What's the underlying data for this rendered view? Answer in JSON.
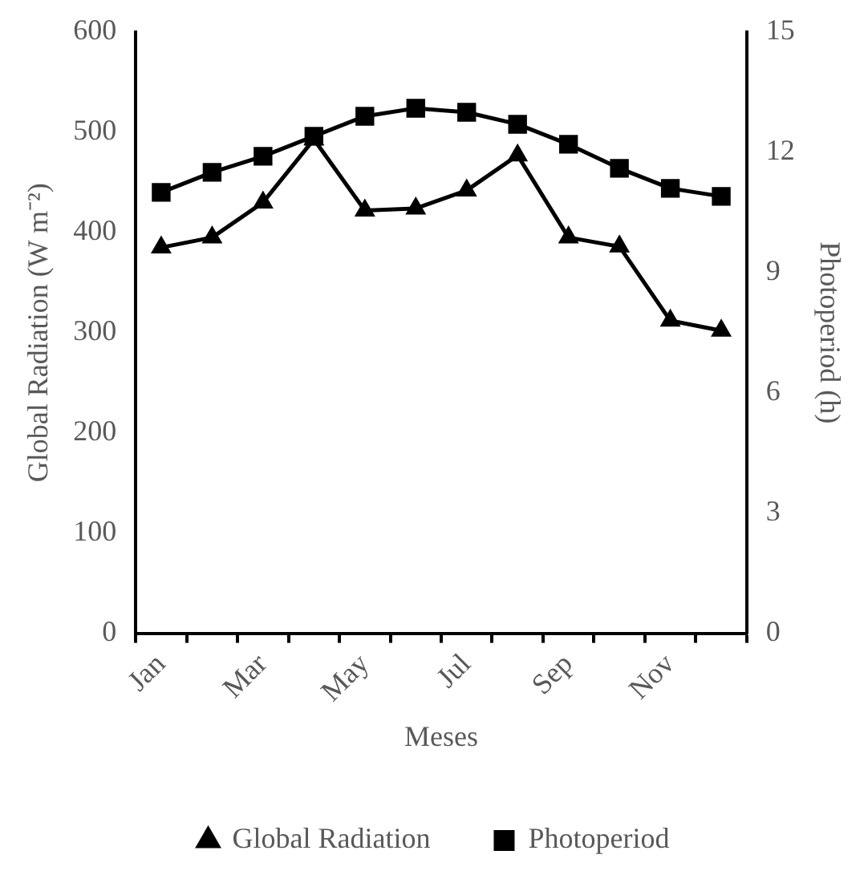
{
  "chart_data": {
    "type": "line",
    "xlabel": "Meses",
    "ylabel": "Global Radiation (W m⁻²)",
    "y2label": "Photoperiod (h)",
    "categories": [
      "Jan",
      null,
      "Mar",
      null,
      "May",
      null,
      "Jul",
      null,
      "Sep",
      null,
      "Nov",
      null
    ],
    "series": [
      {
        "name": "Global Radiation",
        "color": "#000000",
        "marker": "triangle",
        "values": [
          385,
          395,
          430,
          493,
          422,
          424,
          442,
          477,
          395,
          386,
          312,
          302
        ]
      },
      {
        "name": "Photoperiod",
        "color": "#000000",
        "marker": "square",
        "axis": "y2",
        "values": [
          11.0,
          11.5,
          11.9,
          12.4,
          12.9,
          13.1,
          13.0,
          12.7,
          12.2,
          11.6,
          11.1,
          10.9
        ]
      }
    ],
    "ylim": [
      0,
      600
    ],
    "yticks": [
      0,
      100,
      200,
      300,
      400,
      500,
      600
    ],
    "y2lim": [
      0,
      15
    ],
    "y2ticks": [
      0,
      3,
      6,
      9,
      12,
      15
    ],
    "grid": false,
    "legend": "bottom",
    "line_style": "solid"
  }
}
